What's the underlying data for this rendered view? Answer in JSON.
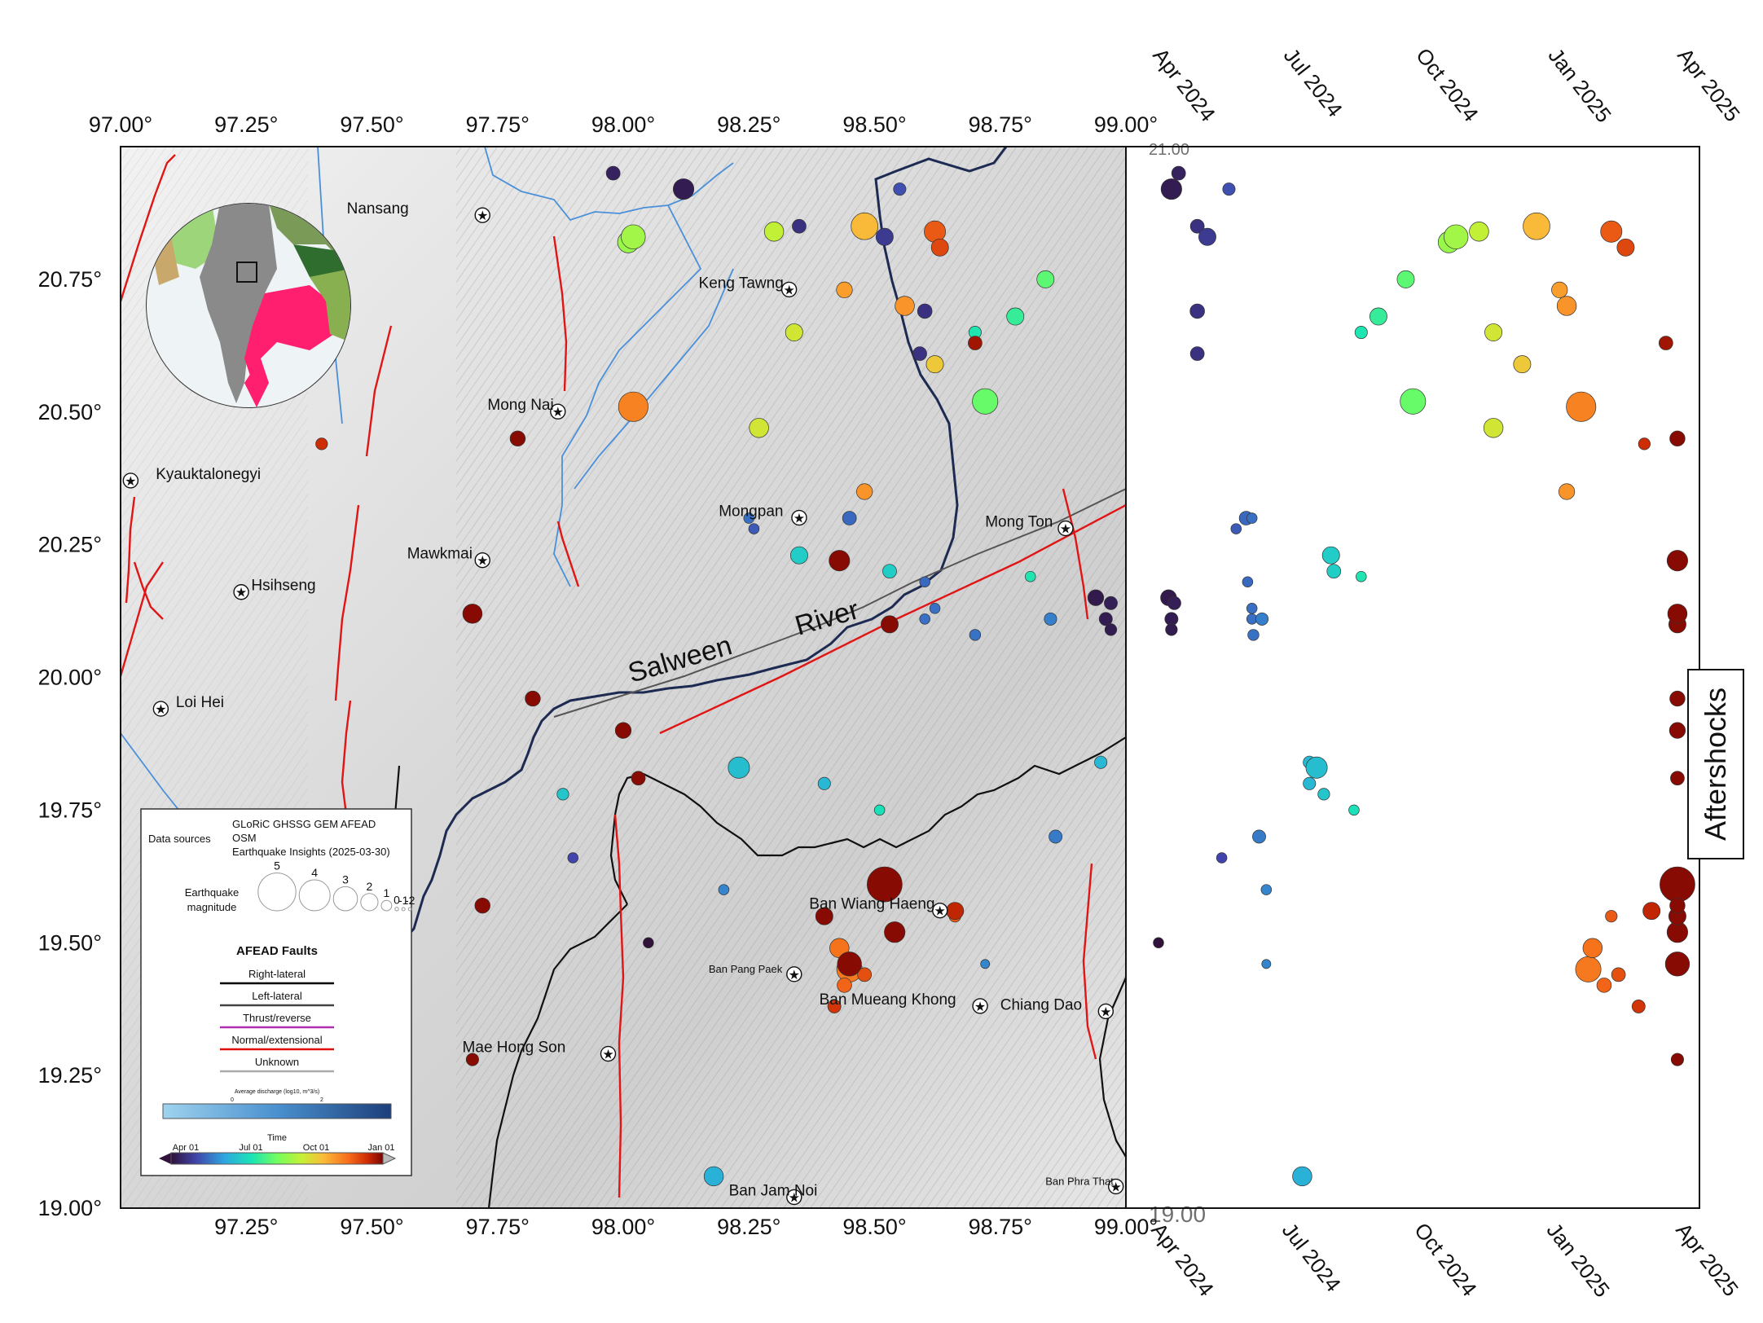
{
  "map": {
    "lon_range": [
      97.0,
      99.0
    ],
    "lat_range": [
      19.0,
      21.0
    ],
    "lon_ticks_top": [
      "97.00°",
      "97.25°",
      "97.50°",
      "97.75°",
      "98.00°",
      "98.25°",
      "98.50°",
      "98.75°",
      "99.00°"
    ],
    "lon_ticks_bottom": [
      "97.25°",
      "97.50°",
      "97.75°",
      "98.00°",
      "98.25°",
      "98.50°",
      "98.75°",
      "99.00°"
    ],
    "lat_ticks": [
      "20.75°",
      "20.50°",
      "20.25°",
      "20.00°",
      "19.75°",
      "19.50°",
      "19.25°",
      "19.00°"
    ],
    "river_label_1": "Salween",
    "river_label_2": "River",
    "places": [
      {
        "name": "Nansang",
        "lon": 97.45,
        "lat": 20.88,
        "star_lon": 97.72
      },
      {
        "name": "Keng Tawng",
        "lon": 98.15,
        "lat": 20.74,
        "star_lon": 98.33
      },
      {
        "name": "Mong Nai",
        "lon": 97.73,
        "lat": 20.51,
        "star_lon": 97.87
      },
      {
        "name": "Kyauktalonegyi",
        "lon": 97.07,
        "lat": 20.38,
        "star_lon": 97.02
      },
      {
        "name": "Mongpan",
        "lon": 98.19,
        "lat": 20.31,
        "star_lon": 98.35
      },
      {
        "name": "Mong Ton",
        "lon": 98.72,
        "lat": 20.29,
        "star_lon": 98.88
      },
      {
        "name": "Mawkmai",
        "lon": 97.57,
        "lat": 20.23,
        "star_lon": 97.72
      },
      {
        "name": "Hsihseng",
        "lon": 97.26,
        "lat": 20.17,
        "star_lon": 97.24
      },
      {
        "name": "Loi Hei",
        "lon": 97.11,
        "lat": 19.95,
        "star_lon": 97.08
      },
      {
        "name": "Ban Wiang Haeng",
        "lon": 98.37,
        "lat": 19.57,
        "star_lon": 98.63
      },
      {
        "name": "Ban Pang Paek",
        "lon": 98.17,
        "lat": 19.45,
        "star_lon": 98.34
      },
      {
        "name": "Ban Mueang Khong",
        "lon": 98.39,
        "lat": 19.39,
        "star_lon": 98.71
      },
      {
        "name": "Chiang Dao",
        "lon": 98.75,
        "lat": 19.38,
        "star_lon": 98.96
      },
      {
        "name": "Mae Hong Son",
        "lon": 97.68,
        "lat": 19.3,
        "star_lon": 97.97
      },
      {
        "name": "Ban Jam Noi",
        "lon": 98.21,
        "lat": 19.03,
        "star_lon": 98.34
      },
      {
        "name": "Ban Phra That",
        "lon": 98.84,
        "lat": 19.05,
        "star_lon": 98.98
      }
    ]
  },
  "legend": {
    "data_sources_label": "Data sources",
    "sources_line1": "GLoRiC GHSSG GEM AFEAD",
    "sources_line2": "OSM",
    "sources_line3": "Earthquake Insights (2025-03-30)",
    "magnitude_label_1": "Earthquake",
    "magnitude_label_2": "magnitude",
    "magnitudes": [
      "5",
      "4",
      "3",
      "2",
      "1",
      "0",
      "-1",
      "-2"
    ],
    "faults_title": "AFEAD Faults",
    "fault_types": [
      "Right-lateral",
      "Left-lateral",
      "Thrust/reverse",
      "Normal/extensional",
      "Unknown"
    ],
    "fault_colors": [
      "#000000",
      "#444444",
      "#b02fb0",
      "#e01010",
      "#aaaaaa"
    ],
    "discharge_label": "Average discharge (log10, m^3/s)",
    "discharge_ticks": [
      "0",
      "2"
    ],
    "time_label": "Time",
    "time_ticks": [
      "Apr 01",
      "Jul 01",
      "Oct 01",
      "Jan 01"
    ]
  },
  "timeline": {
    "x_ticks_top": [
      "Apr 2024",
      "Jul 2024",
      "Oct 2024",
      "Jan 2025",
      "Apr 2025"
    ],
    "x_ticks_bottom": [
      "Apr 2024",
      "Jul 2024",
      "Oct 2024",
      "Jan 2025",
      "Apr 2025"
    ],
    "y_corner_top": "21.00",
    "y_corner_bottom": "19.00",
    "side_label": "Aftershocks"
  },
  "chart_data": {
    "type": "scatter",
    "x_axis": "time",
    "xlim": [
      "2024-04-01",
      "2025-04-01"
    ],
    "ylim": [
      19.0,
      21.0
    ],
    "events": [
      {
        "date": "2024-04-10",
        "lon": 98.12,
        "lat": 20.92,
        "mag": 2.5
      },
      {
        "date": "2024-04-15",
        "lon": 97.98,
        "lat": 20.95,
        "mag": 1.5
      },
      {
        "date": "2024-04-28",
        "lon": 98.35,
        "lat": 20.85,
        "mag": 1.5
      },
      {
        "date": "2024-05-05",
        "lon": 98.52,
        "lat": 20.83,
        "mag": 2.0
      },
      {
        "date": "2024-05-20",
        "lon": 98.55,
        "lat": 20.92,
        "mag": 1.3
      },
      {
        "date": "2024-04-28",
        "lon": 98.6,
        "lat": 20.69,
        "mag": 1.6
      },
      {
        "date": "2024-04-28",
        "lon": 98.59,
        "lat": 20.61,
        "mag": 1.5
      },
      {
        "date": "2024-04-08",
        "lon": 98.94,
        "lat": 20.15,
        "mag": 1.8
      },
      {
        "date": "2024-04-12",
        "lon": 98.97,
        "lat": 20.14,
        "mag": 1.4
      },
      {
        "date": "2024-04-10",
        "lon": 98.96,
        "lat": 20.11,
        "mag": 1.4
      },
      {
        "date": "2024-04-10",
        "lon": 98.97,
        "lat": 20.09,
        "mag": 1.2
      },
      {
        "date": "2024-06-01",
        "lon": 98.45,
        "lat": 20.3,
        "mag": 1.5
      },
      {
        "date": "2024-06-05",
        "lon": 98.25,
        "lat": 20.3,
        "mag": 1.0
      },
      {
        "date": "2024-05-25",
        "lon": 98.26,
        "lat": 20.28,
        "mag": 1.0
      },
      {
        "date": "2024-06-02",
        "lon": 98.6,
        "lat": 20.18,
        "mag": 1.0
      },
      {
        "date": "2024-06-05",
        "lon": 98.62,
        "lat": 20.13,
        "mag": 1.0
      },
      {
        "date": "2024-06-05",
        "lon": 98.6,
        "lat": 20.11,
        "mag": 1.0
      },
      {
        "date": "2024-06-12",
        "lon": 98.85,
        "lat": 20.11,
        "mag": 1.3
      },
      {
        "date": "2024-06-06",
        "lon": 98.7,
        "lat": 20.08,
        "mag": 1.1
      },
      {
        "date": "2024-04-01",
        "lon": 98.05,
        "lat": 19.5,
        "mag": 1.0
      },
      {
        "date": "2024-05-15",
        "lon": 97.9,
        "lat": 19.66,
        "mag": 1.0
      },
      {
        "date": "2024-06-10",
        "lon": 98.86,
        "lat": 19.7,
        "mag": 1.4
      },
      {
        "date": "2024-06-15",
        "lon": 98.2,
        "lat": 19.6,
        "mag": 1.0
      },
      {
        "date": "2024-06-15",
        "lon": 98.72,
        "lat": 19.46,
        "mag": 0.8
      },
      {
        "date": "2024-07-10",
        "lon": 98.18,
        "lat": 19.06,
        "mag": 2.3
      },
      {
        "date": "2024-07-15",
        "lon": 98.95,
        "lat": 19.84,
        "mag": 1.3
      },
      {
        "date": "2024-07-20",
        "lon": 98.23,
        "lat": 19.83,
        "mag": 2.6
      },
      {
        "date": "2024-07-15",
        "lon": 98.4,
        "lat": 19.8,
        "mag": 1.3
      },
      {
        "date": "2024-07-25",
        "lon": 97.88,
        "lat": 19.78,
        "mag": 1.2
      },
      {
        "date": "2024-08-15",
        "lon": 98.51,
        "lat": 19.75,
        "mag": 1.0
      },
      {
        "date": "2024-07-30",
        "lon": 98.35,
        "lat": 20.23,
        "mag": 2.0
      },
      {
        "date": "2024-08-01",
        "lon": 98.53,
        "lat": 20.2,
        "mag": 1.5
      },
      {
        "date": "2024-08-20",
        "lon": 98.81,
        "lat": 20.19,
        "mag": 1.0
      },
      {
        "date": "2024-08-20",
        "lon": 98.7,
        "lat": 20.65,
        "mag": 1.3
      },
      {
        "date": "2024-09-01",
        "lon": 98.78,
        "lat": 20.68,
        "mag": 2.0
      },
      {
        "date": "2024-09-20",
        "lon": 98.84,
        "lat": 20.75,
        "mag": 2.0
      },
      {
        "date": "2024-09-25",
        "lon": 98.72,
        "lat": 20.52,
        "mag": 3.2
      },
      {
        "date": "2024-10-25",
        "lon": 98.02,
        "lat": 20.83,
        "mag": 3.0
      },
      {
        "date": "2024-10-20",
        "lon": 98.01,
        "lat": 20.82,
        "mag": 2.6
      },
      {
        "date": "2024-11-10",
        "lon": 98.3,
        "lat": 20.84,
        "mag": 2.3
      },
      {
        "date": "2024-12-20",
        "lon": 98.48,
        "lat": 20.85,
        "mag": 3.4
      },
      {
        "date": "2025-01-05",
        "lon": 98.44,
        "lat": 20.73,
        "mag": 1.8
      },
      {
        "date": "2025-01-10",
        "lon": 98.56,
        "lat": 20.7,
        "mag": 2.3
      },
      {
        "date": "2024-11-20",
        "lon": 98.34,
        "lat": 20.65,
        "mag": 2.0
      },
      {
        "date": "2024-12-10",
        "lon": 98.62,
        "lat": 20.59,
        "mag": 2.0
      },
      {
        "date": "2025-01-20",
        "lon": 98.02,
        "lat": 20.51,
        "mag": 3.8
      },
      {
        "date": "2024-11-20",
        "lon": 98.27,
        "lat": 20.47,
        "mag": 2.3
      },
      {
        "date": "2025-01-10",
        "lon": 98.48,
        "lat": 20.35,
        "mag": 1.8
      },
      {
        "date": "2025-02-10",
        "lon": 98.62,
        "lat": 20.84,
        "mag": 2.6
      },
      {
        "date": "2025-02-20",
        "lon": 98.63,
        "lat": 20.81,
        "mag": 2.0
      },
      {
        "date": "2025-03-20",
        "lon": 98.7,
        "lat": 20.63,
        "mag": 1.5
      },
      {
        "date": "2025-03-05",
        "lon": 97.4,
        "lat": 20.44,
        "mag": 1.2
      },
      {
        "date": "2025-03-28",
        "lon": 98.43,
        "lat": 20.22,
        "mag": 2.5
      },
      {
        "date": "2025-03-28",
        "lon": 98.53,
        "lat": 20.1,
        "mag": 2.0
      },
      {
        "date": "2025-03-28",
        "lon": 97.7,
        "lat": 20.12,
        "mag": 2.3
      },
      {
        "date": "2025-03-28",
        "lon": 98.52,
        "lat": 19.61,
        "mag": 4.6
      },
      {
        "date": "2025-03-28",
        "lon": 98.45,
        "lat": 19.46,
        "mag": 3.0
      },
      {
        "date": "2025-03-28",
        "lon": 98.54,
        "lat": 19.52,
        "mag": 2.5
      },
      {
        "date": "2025-03-28",
        "lon": 98.4,
        "lat": 19.55,
        "mag": 2.0
      },
      {
        "date": "2025-03-28",
        "lon": 98.0,
        "lat": 19.9,
        "mag": 1.8
      },
      {
        "date": "2025-03-28",
        "lon": 98.03,
        "lat": 19.81,
        "mag": 1.5
      },
      {
        "date": "2025-01-25",
        "lon": 98.45,
        "lat": 19.45,
        "mag": 3.2
      },
      {
        "date": "2025-01-28",
        "lon": 98.43,
        "lat": 19.49,
        "mag": 2.3
      },
      {
        "date": "2025-02-05",
        "lon": 98.44,
        "lat": 19.42,
        "mag": 1.6
      },
      {
        "date": "2025-02-15",
        "lon": 98.48,
        "lat": 19.44,
        "mag": 1.5
      },
      {
        "date": "2025-03-01",
        "lon": 98.42,
        "lat": 19.38,
        "mag": 1.4
      },
      {
        "date": "2025-02-10",
        "lon": 98.66,
        "lat": 19.55,
        "mag": 1.2
      },
      {
        "date": "2025-03-10",
        "lon": 98.66,
        "lat": 19.56,
        "mag": 2.0
      },
      {
        "date": "2025-03-28",
        "lon": 97.79,
        "lat": 20.45,
        "mag": 1.7
      },
      {
        "date": "2025-03-28",
        "lon": 97.82,
        "lat": 19.96,
        "mag": 1.7
      },
      {
        "date": "2025-03-28",
        "lon": 97.72,
        "lat": 19.57,
        "mag": 1.7
      },
      {
        "date": "2025-03-28",
        "lon": 97.7,
        "lat": 19.28,
        "mag": 1.3
      }
    ]
  }
}
